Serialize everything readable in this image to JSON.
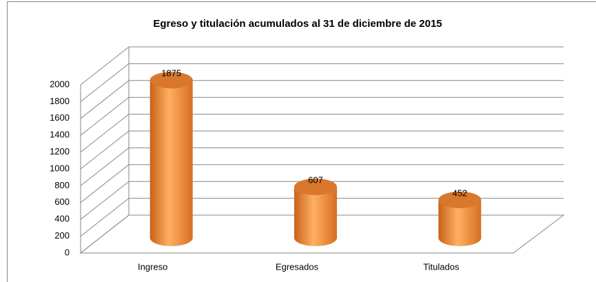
{
  "chart_data": {
    "type": "bar3d",
    "title": "Egreso y titulación acumulados al 31 de diciembre de 2015",
    "categories": [
      "Ingreso",
      "Egresados",
      "Titulados"
    ],
    "values": [
      1875,
      607,
      452
    ],
    "color": "#f79646",
    "ylim": [
      0,
      2000
    ],
    "yticks": [
      0,
      200,
      400,
      600,
      800,
      1000,
      1200,
      1400,
      1600,
      1800,
      2000
    ],
    "grid": true
  }
}
